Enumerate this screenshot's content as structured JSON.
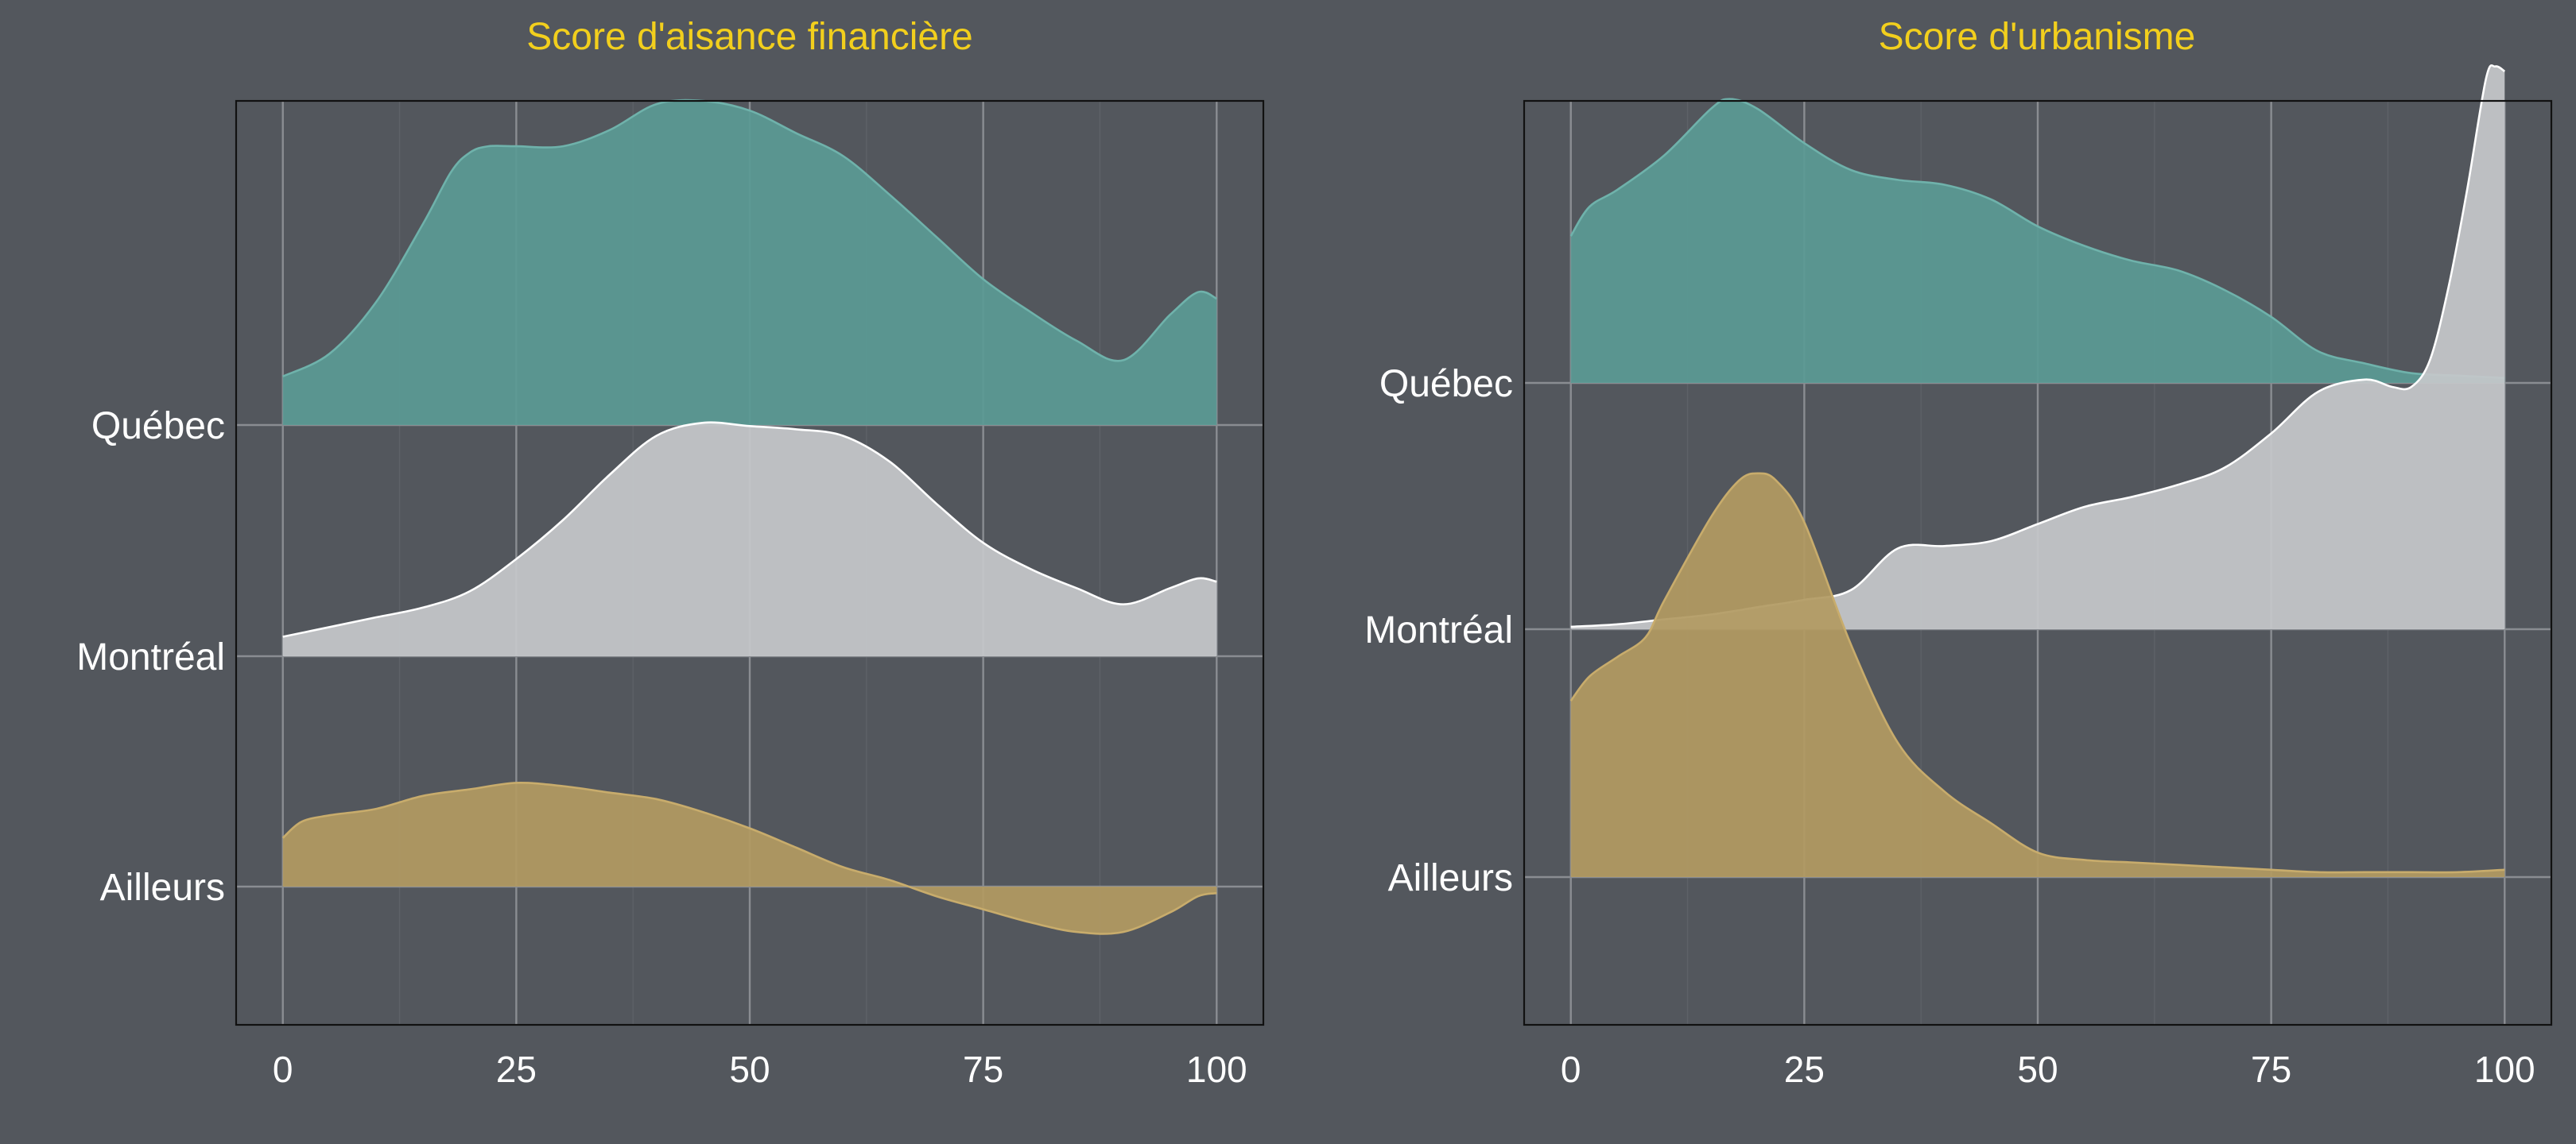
{
  "chart_data": [
    {
      "type": "area",
      "title": "Score d'aisance financière",
      "xlabel": "",
      "ylabel": "",
      "xlim": [
        -5,
        105
      ],
      "xticks": [
        "0",
        "25",
        "50",
        "75",
        "100"
      ],
      "grid": true,
      "categories": [
        "Québec",
        "Montréal",
        "Ailleurs"
      ],
      "colors": {
        "Québec": "#5a9a94",
        "Montréal": "#c5c7ca",
        "Ailleurs": "#b29a62"
      },
      "series": [
        {
          "name": "Québec",
          "x": [
            0,
            5,
            10,
            15,
            18,
            20,
            22,
            25,
            30,
            35,
            40,
            45,
            50,
            55,
            60,
            65,
            70,
            75,
            80,
            85,
            90,
            95,
            98,
            100
          ],
          "density": [
            0.15,
            0.22,
            0.38,
            0.62,
            0.78,
            0.84,
            0.86,
            0.86,
            0.86,
            0.91,
            0.99,
            1.0,
            0.97,
            0.9,
            0.83,
            0.71,
            0.58,
            0.45,
            0.35,
            0.26,
            0.2,
            0.34,
            0.41,
            0.39
          ]
        },
        {
          "name": "Montréal",
          "x": [
            0,
            5,
            10,
            15,
            20,
            25,
            30,
            35,
            40,
            45,
            50,
            55,
            60,
            65,
            70,
            75,
            80,
            85,
            90,
            95,
            98,
            100
          ],
          "density": [
            0.06,
            0.09,
            0.12,
            0.15,
            0.2,
            0.3,
            0.42,
            0.56,
            0.68,
            0.72,
            0.71,
            0.7,
            0.68,
            0.6,
            0.47,
            0.35,
            0.27,
            0.21,
            0.16,
            0.21,
            0.24,
            0.23
          ]
        },
        {
          "name": "Ailleurs",
          "x": [
            0,
            2,
            5,
            10,
            15,
            20,
            25,
            30,
            35,
            40,
            45,
            50,
            55,
            60,
            65,
            70,
            75,
            80,
            85,
            90,
            95,
            98,
            100
          ],
          "density": [
            0.15,
            0.2,
            0.22,
            0.24,
            0.28,
            0.3,
            0.32,
            0.31,
            0.29,
            0.27,
            0.23,
            0.18,
            0.12,
            0.06,
            0.02,
            -0.03,
            -0.07,
            -0.11,
            -0.14,
            -0.14,
            -0.08,
            -0.03,
            -0.02
          ]
        }
      ]
    },
    {
      "type": "area",
      "title": "Score d'urbanisme",
      "xlabel": "",
      "ylabel": "",
      "xlim": [
        -5,
        105
      ],
      "xticks": [
        "0",
        "25",
        "50",
        "75",
        "100"
      ],
      "grid": true,
      "categories": [
        "Québec",
        "Montréal",
        "Ailleurs"
      ],
      "colors": {
        "Québec": "#5a9a94",
        "Montréal": "#c5c7ca",
        "Ailleurs": "#b29a62"
      },
      "series": [
        {
          "name": "Québec",
          "x": [
            0,
            2,
            5,
            10,
            15,
            17,
            20,
            25,
            30,
            35,
            40,
            45,
            50,
            55,
            60,
            65,
            70,
            75,
            80,
            85,
            90,
            95,
            100
          ],
          "density": [
            0.6,
            0.72,
            0.79,
            0.93,
            1.12,
            1.16,
            1.12,
            0.98,
            0.87,
            0.83,
            0.81,
            0.75,
            0.64,
            0.56,
            0.5,
            0.46,
            0.38,
            0.27,
            0.13,
            0.08,
            0.04,
            0.03,
            0.02
          ]
        },
        {
          "name": "Montréal",
          "x": [
            0,
            5,
            10,
            15,
            20,
            25,
            30,
            35,
            40,
            45,
            50,
            55,
            60,
            65,
            70,
            75,
            80,
            85,
            88,
            90,
            92,
            94,
            96,
            98,
            99,
            100
          ],
          "density": [
            0.01,
            0.02,
            0.04,
            0.06,
            0.09,
            0.12,
            0.16,
            0.33,
            0.34,
            0.36,
            0.43,
            0.5,
            0.54,
            0.59,
            0.66,
            0.8,
            0.97,
            1.02,
            0.99,
            0.99,
            1.1,
            1.4,
            1.8,
            2.25,
            2.3,
            2.28
          ]
        },
        {
          "name": "Ailleurs",
          "x": [
            0,
            2,
            5,
            8,
            10,
            15,
            18,
            20,
            22,
            25,
            30,
            35,
            40,
            45,
            50,
            55,
            60,
            65,
            70,
            75,
            80,
            85,
            90,
            95,
            100
          ],
          "density": [
            0.72,
            0.82,
            0.9,
            0.98,
            1.13,
            1.47,
            1.62,
            1.65,
            1.62,
            1.45,
            0.95,
            0.55,
            0.35,
            0.22,
            0.1,
            0.07,
            0.06,
            0.05,
            0.04,
            0.03,
            0.02,
            0.02,
            0.02,
            0.02,
            0.03
          ]
        }
      ]
    }
  ]
}
